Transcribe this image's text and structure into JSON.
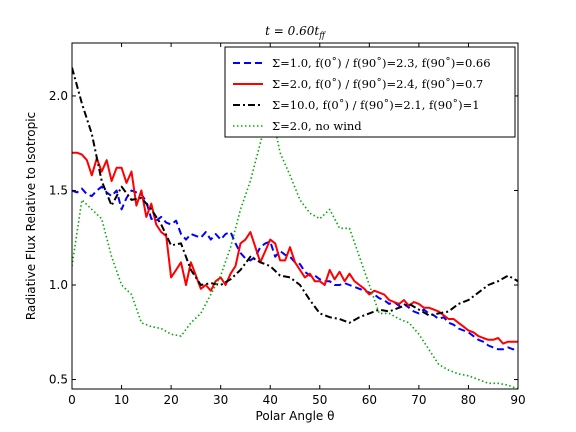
{
  "chart_data": {
    "type": "line",
    "title": "t = 0.60t_ff",
    "xlabel": "Polar Angle θ",
    "ylabel": "Radiative Flux Relative to Isotropic",
    "xlim": [
      0,
      90
    ],
    "ylim": [
      0.45,
      2.28
    ],
    "xticks": [
      "0",
      "10",
      "20",
      "30",
      "40",
      "50",
      "60",
      "70",
      "80",
      "90"
    ],
    "yticks": [
      "0.5",
      "1.0",
      "1.5",
      "2.0"
    ],
    "legend_position": "top-right",
    "grid": false,
    "series": [
      {
        "name": "Σ=1.0,  f(0˚) / f(90˚)=2.3, f(90˚)=0.66",
        "color": "#0000ff",
        "dash": "dashed",
        "x": [
          0,
          1,
          2,
          3,
          4,
          5,
          6,
          7,
          8,
          9,
          10,
          11,
          12,
          13,
          14,
          15,
          16,
          17,
          18,
          19,
          20,
          21,
          22,
          23,
          24,
          25,
          26,
          27,
          28,
          29,
          30,
          31,
          32,
          33,
          34,
          35,
          36,
          37,
          38,
          39,
          40,
          41,
          42,
          43,
          44,
          45,
          46,
          47,
          48,
          49,
          50,
          51,
          52,
          53,
          54,
          55,
          56,
          57,
          58,
          59,
          60,
          61,
          62,
          63,
          64,
          65,
          66,
          67,
          68,
          69,
          70,
          71,
          72,
          73,
          74,
          75,
          76,
          77,
          78,
          79,
          80,
          81,
          82,
          83,
          84,
          85,
          86,
          87,
          88,
          89,
          90
        ],
        "y": [
          1.5,
          1.49,
          1.51,
          1.48,
          1.47,
          1.5,
          1.52,
          1.49,
          1.47,
          1.5,
          1.4,
          1.46,
          1.5,
          1.49,
          1.48,
          1.44,
          1.35,
          1.34,
          1.36,
          1.33,
          1.32,
          1.34,
          1.27,
          1.24,
          1.27,
          1.26,
          1.25,
          1.28,
          1.24,
          1.27,
          1.24,
          1.27,
          1.28,
          1.22,
          1.17,
          1.14,
          1.13,
          1.15,
          1.2,
          1.22,
          1.23,
          1.15,
          1.18,
          1.16,
          1.15,
          1.12,
          1.11,
          1.07,
          1.05,
          1.05,
          1.03,
          1.02,
          1.02,
          1.0,
          1.0,
          1.01,
          1.0,
          0.99,
          0.98,
          0.97,
          0.96,
          0.95,
          0.93,
          0.92,
          0.9,
          0.91,
          0.89,
          0.9,
          0.88,
          0.86,
          0.85,
          0.87,
          0.85,
          0.84,
          0.82,
          0.83,
          0.8,
          0.79,
          0.77,
          0.76,
          0.75,
          0.73,
          0.71,
          0.7,
          0.68,
          0.67,
          0.66,
          0.66,
          0.67,
          0.66,
          0.66
        ]
      },
      {
        "name": "Σ=2.0,  f(0˚) / f(90˚)=2.4, f(90˚)=0.7",
        "color": "#ff0000",
        "dash": "solid",
        "x": [
          0,
          1,
          2,
          3,
          4,
          5,
          6,
          7,
          8,
          9,
          10,
          11,
          12,
          13,
          14,
          15,
          16,
          17,
          18,
          19,
          20,
          21,
          22,
          23,
          24,
          25,
          26,
          27,
          28,
          29,
          30,
          31,
          32,
          33,
          34,
          35,
          36,
          37,
          38,
          39,
          40,
          41,
          42,
          43,
          44,
          45,
          46,
          47,
          48,
          49,
          50,
          51,
          52,
          53,
          54,
          55,
          56,
          57,
          58,
          59,
          60,
          61,
          62,
          63,
          64,
          65,
          66,
          67,
          68,
          69,
          70,
          71,
          72,
          73,
          74,
          75,
          76,
          77,
          78,
          79,
          80,
          81,
          82,
          83,
          84,
          85,
          86,
          87,
          88,
          89,
          90
        ],
        "y": [
          1.7,
          1.7,
          1.69,
          1.66,
          1.58,
          1.67,
          1.6,
          1.66,
          1.55,
          1.62,
          1.62,
          1.54,
          1.6,
          1.42,
          1.5,
          1.36,
          1.43,
          1.32,
          1.28,
          1.26,
          1.04,
          1.08,
          1.12,
          1.0,
          1.12,
          1.05,
          0.98,
          1.0,
          0.97,
          1.02,
          1.04,
          1.0,
          1.06,
          1.1,
          1.22,
          1.24,
          1.28,
          1.2,
          1.12,
          1.18,
          1.24,
          1.22,
          1.13,
          1.13,
          1.2,
          1.12,
          1.08,
          1.04,
          1.06,
          1.02,
          1.02,
          1.0,
          1.08,
          1.03,
          1.07,
          1.02,
          1.06,
          1.02,
          1.0,
          0.98,
          0.95,
          0.97,
          0.96,
          0.95,
          0.92,
          0.91,
          0.9,
          0.92,
          0.89,
          0.91,
          0.9,
          0.88,
          0.88,
          0.87,
          0.86,
          0.84,
          0.82,
          0.82,
          0.8,
          0.78,
          0.76,
          0.75,
          0.73,
          0.72,
          0.71,
          0.71,
          0.72,
          0.69,
          0.7,
          0.7,
          0.7
        ]
      },
      {
        "name": "Σ=10.0,  f(0˚) / f(90˚)=2.1, f(90˚)=1",
        "color": "#000000",
        "dash": "dashdot",
        "x": [
          0,
          2,
          4,
          6,
          8,
          10,
          12,
          14,
          16,
          18,
          20,
          22,
          24,
          26,
          28,
          30,
          32,
          34,
          36,
          38,
          40,
          42,
          44,
          46,
          48,
          50,
          52,
          54,
          56,
          58,
          60,
          62,
          64,
          66,
          68,
          70,
          72,
          74,
          76,
          78,
          80,
          82,
          84,
          86,
          88,
          90
        ],
        "y": [
          2.15,
          1.96,
          1.8,
          1.55,
          1.42,
          1.52,
          1.45,
          1.46,
          1.4,
          1.32,
          1.21,
          1.22,
          1.08,
          1.0,
          1.01,
          1.0,
          1.03,
          1.08,
          1.15,
          1.12,
          1.1,
          1.05,
          1.04,
          1.0,
          0.92,
          0.85,
          0.83,
          0.82,
          0.8,
          0.83,
          0.85,
          0.87,
          0.86,
          0.88,
          0.9,
          0.87,
          0.84,
          0.85,
          0.86,
          0.9,
          0.92,
          0.96,
          1.0,
          1.02,
          1.05,
          1.02
        ]
      },
      {
        "name": "Σ=2.0, no wind",
        "color": "#00aa00",
        "dash": "dotted",
        "x": [
          0,
          2,
          4,
          6,
          8,
          10,
          12,
          14,
          16,
          18,
          20,
          22,
          24,
          26,
          28,
          30,
          32,
          34,
          36,
          38,
          40,
          42,
          44,
          46,
          48,
          50,
          52,
          54,
          56,
          58,
          60,
          62,
          64,
          66,
          68,
          70,
          72,
          74,
          76,
          78,
          80,
          82,
          84,
          86,
          88,
          90
        ],
        "y": [
          1.1,
          1.45,
          1.4,
          1.35,
          1.15,
          1.0,
          0.95,
          0.8,
          0.78,
          0.77,
          0.74,
          0.73,
          0.8,
          0.85,
          0.95,
          1.05,
          1.2,
          1.4,
          1.55,
          1.75,
          1.95,
          1.7,
          1.58,
          1.45,
          1.38,
          1.35,
          1.4,
          1.3,
          1.3,
          1.15,
          1.0,
          0.85,
          0.85,
          0.82,
          0.8,
          0.74,
          0.66,
          0.58,
          0.55,
          0.53,
          0.52,
          0.5,
          0.48,
          0.48,
          0.47,
          0.45
        ]
      }
    ]
  }
}
